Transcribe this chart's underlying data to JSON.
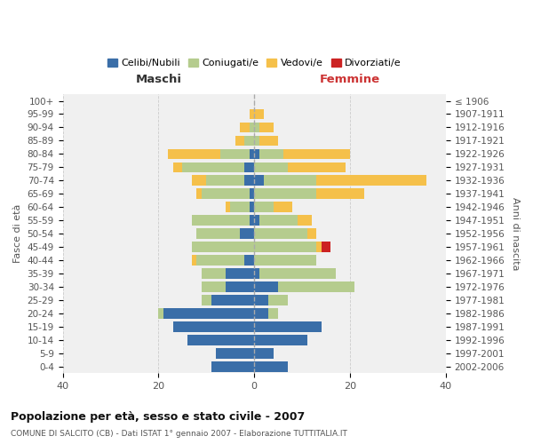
{
  "age_groups": [
    "0-4",
    "5-9",
    "10-14",
    "15-19",
    "20-24",
    "25-29",
    "30-34",
    "35-39",
    "40-44",
    "45-49",
    "50-54",
    "55-59",
    "60-64",
    "65-69",
    "70-74",
    "75-79",
    "80-84",
    "85-89",
    "90-94",
    "95-99",
    "100+"
  ],
  "birth_years": [
    "2002-2006",
    "1997-2001",
    "1992-1996",
    "1987-1991",
    "1982-1986",
    "1977-1981",
    "1972-1976",
    "1967-1971",
    "1962-1966",
    "1957-1961",
    "1952-1956",
    "1947-1951",
    "1942-1946",
    "1937-1941",
    "1932-1936",
    "1927-1931",
    "1922-1926",
    "1917-1921",
    "1912-1916",
    "1907-1911",
    "≤ 1906"
  ],
  "maschi": {
    "celibi": [
      9,
      8,
      14,
      17,
      19,
      9,
      6,
      6,
      2,
      0,
      3,
      1,
      1,
      1,
      2,
      2,
      1,
      0,
      0,
      0,
      0
    ],
    "coniugati": [
      0,
      0,
      0,
      0,
      1,
      2,
      5,
      5,
      10,
      13,
      9,
      12,
      4,
      10,
      8,
      13,
      6,
      2,
      1,
      0,
      0
    ],
    "vedovi": [
      0,
      0,
      0,
      0,
      0,
      0,
      0,
      0,
      1,
      0,
      0,
      0,
      1,
      1,
      3,
      2,
      11,
      2,
      2,
      1,
      0
    ],
    "divorziati": [
      0,
      0,
      0,
      0,
      0,
      0,
      0,
      0,
      0,
      0,
      0,
      0,
      0,
      0,
      0,
      0,
      0,
      0,
      0,
      0,
      0
    ]
  },
  "femmine": {
    "nubili": [
      7,
      4,
      11,
      14,
      3,
      3,
      5,
      1,
      0,
      0,
      0,
      1,
      0,
      0,
      2,
      0,
      1,
      0,
      0,
      0,
      0
    ],
    "coniugate": [
      0,
      0,
      0,
      0,
      2,
      4,
      16,
      16,
      13,
      13,
      11,
      8,
      4,
      13,
      11,
      7,
      5,
      1,
      1,
      0,
      0
    ],
    "vedove": [
      0,
      0,
      0,
      0,
      0,
      0,
      0,
      0,
      0,
      1,
      2,
      3,
      4,
      10,
      23,
      12,
      14,
      4,
      3,
      2,
      0
    ],
    "divorziate": [
      0,
      0,
      0,
      0,
      0,
      0,
      0,
      0,
      0,
      2,
      0,
      0,
      0,
      0,
      0,
      0,
      0,
      0,
      0,
      0,
      0
    ]
  },
  "colors": {
    "celibi_nubili": "#3a6ea8",
    "coniugati": "#b5cc8e",
    "vedovi": "#f5c04a",
    "divorziati": "#cc2222"
  },
  "xlim": [
    -40,
    40
  ],
  "title": "Popolazione per età, sesso e stato civile - 2007",
  "subtitle": "COMUNE DI SALCITO (CB) - Dati ISTAT 1° gennaio 2007 - Elaborazione TUTTITALIA.IT",
  "xlabel_left": "Maschi",
  "xlabel_right": "Femmine",
  "ylabel_left": "Fasce di età",
  "ylabel_right": "Anni di nascita",
  "bg_color": "#ffffff",
  "plot_bg_color": "#f0f0f0",
  "grid_color": "#cccccc"
}
